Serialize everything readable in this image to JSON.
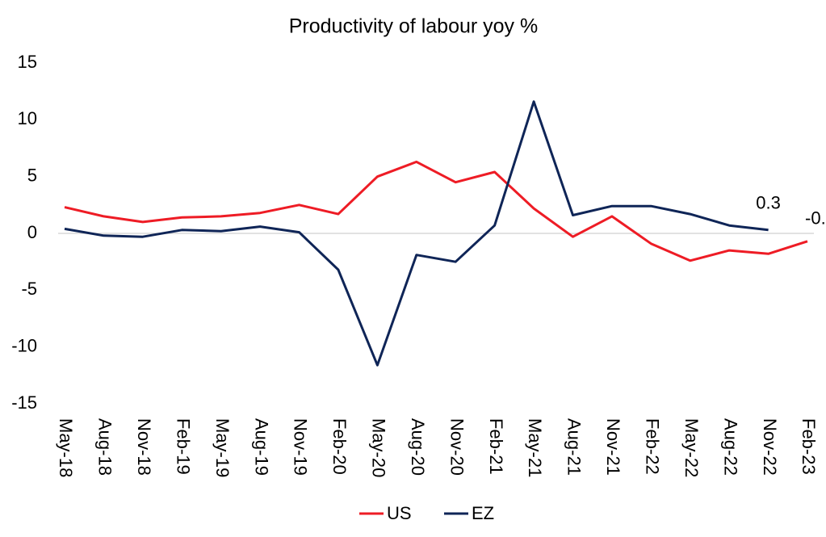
{
  "chart_data": {
    "type": "line",
    "title": "Productivity of labour yoy %",
    "categories": [
      "May-18",
      "Aug-18",
      "Nov-18",
      "Feb-19",
      "May-19",
      "Aug-19",
      "Nov-19",
      "Feb-20",
      "May-20",
      "Aug-20",
      "Nov-20",
      "Feb-21",
      "May-21",
      "Aug-21",
      "Nov-21",
      "Feb-22",
      "May-22",
      "Aug-22",
      "Nov-22",
      "Feb-23"
    ],
    "series": [
      {
        "name": "US",
        "color": "#ee1c25",
        "values": [
          2.3,
          1.5,
          1.0,
          1.4,
          1.5,
          1.8,
          2.5,
          1.7,
          5.0,
          6.3,
          4.5,
          5.4,
          2.2,
          -0.3,
          1.5,
          -0.9,
          -2.4,
          -1.5,
          -1.8,
          -0.7
        ]
      },
      {
        "name": "EZ",
        "color": "#0f2557",
        "values": [
          0.4,
          -0.2,
          -0.3,
          0.3,
          0.2,
          0.6,
          0.1,
          -3.2,
          -11.6,
          -1.9,
          -2.5,
          0.7,
          11.6,
          1.6,
          2.4,
          2.4,
          1.7,
          0.7,
          0.3,
          null
        ]
      }
    ],
    "ylim": [
      -15,
      15
    ],
    "yticks": [
      -15,
      -10,
      -5,
      0,
      5,
      10,
      15
    ],
    "grid": false,
    "legend": "bottom"
  }
}
